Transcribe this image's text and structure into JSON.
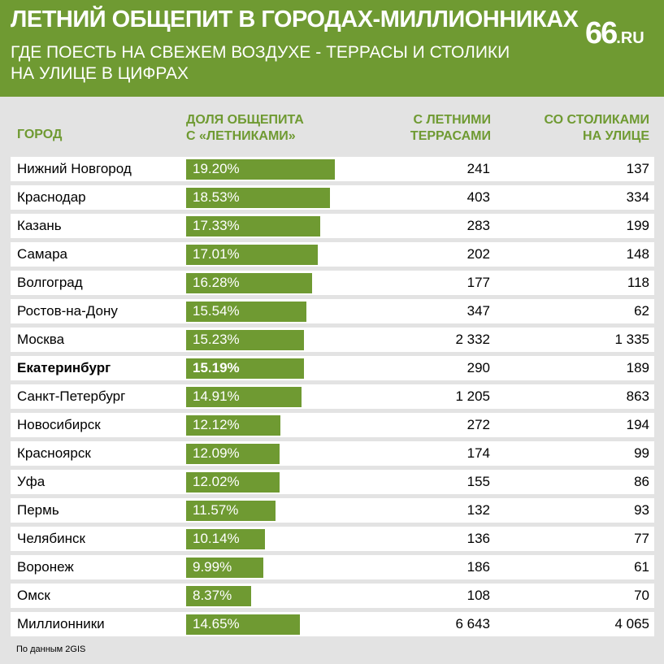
{
  "header": {
    "title": "ЛЕТНИЙ ОБЩЕПИТ В ГОРОДАХ-МИЛЛИОННИКАХ",
    "subtitle": "ГДЕ ПОЕСТЬ НА СВЕЖЕМ ВОЗДУХЕ - ТЕРРАСЫ И СТОЛИКИ НА УЛИЦЕ В ЦИФРАХ",
    "logo_big": "66",
    "logo_small": ".RU"
  },
  "columns": {
    "city": "ГОРОД",
    "share_1": "ДОЛЯ ОБЩЕПИТА",
    "share_2": "С «ЛЕТНИКАМИ»",
    "terraces_1": "С ЛЕТНИМИ",
    "terraces_2": "ТЕРРАСАМИ",
    "tables_1": "СО СТОЛИКАМИ",
    "tables_2": "НА УЛИЦЕ"
  },
  "source": "По данным 2GIS",
  "colors": {
    "accent": "#6f9a32",
    "background": "#e3e3e3",
    "row": "#ffffff"
  },
  "chart_data": {
    "type": "table",
    "title": "ЛЕТНИЙ ОБЩЕПИТ В ГОРОДАХ-МИЛЛИОННИКАХ",
    "max_share": 19.2,
    "rows": [
      {
        "city": "Нижний Новгород",
        "share": 19.2,
        "share_label": "19.20%",
        "terraces": "241",
        "tables": "137",
        "bold": false
      },
      {
        "city": "Краснодар",
        "share": 18.53,
        "share_label": "18.53%",
        "terraces": "403",
        "tables": "334",
        "bold": false
      },
      {
        "city": "Казань",
        "share": 17.33,
        "share_label": "17.33%",
        "terraces": "283",
        "tables": "199",
        "bold": false
      },
      {
        "city": "Самара",
        "share": 17.01,
        "share_label": "17.01%",
        "terraces": "202",
        "tables": "148",
        "bold": false
      },
      {
        "city": "Волгоград",
        "share": 16.28,
        "share_label": "16.28%",
        "terraces": "177",
        "tables": "118",
        "bold": false
      },
      {
        "city": "Ростов-на-Дону",
        "share": 15.54,
        "share_label": "15.54%",
        "terraces": "347",
        "tables": "62",
        "bold": false
      },
      {
        "city": "Москва",
        "share": 15.23,
        "share_label": "15.23%",
        "terraces": "2 332",
        "tables": "1 335",
        "bold": false
      },
      {
        "city": "Екатеринбург",
        "share": 15.19,
        "share_label": "15.19%",
        "terraces": "290",
        "tables": "189",
        "bold": true
      },
      {
        "city": "Санкт-Петербург",
        "share": 14.91,
        "share_label": "14.91%",
        "terraces": "1 205",
        "tables": "863",
        "bold": false
      },
      {
        "city": "Новосибирск",
        "share": 12.12,
        "share_label": "12.12%",
        "terraces": "272",
        "tables": "194",
        "bold": false
      },
      {
        "city": "Красноярск",
        "share": 12.09,
        "share_label": "12.09%",
        "terraces": "174",
        "tables": "99",
        "bold": false
      },
      {
        "city": "Уфа",
        "share": 12.02,
        "share_label": "12.02%",
        "terraces": "155",
        "tables": "86",
        "bold": false
      },
      {
        "city": "Пермь",
        "share": 11.57,
        "share_label": "11.57%",
        "terraces": "132",
        "tables": "93",
        "bold": false
      },
      {
        "city": "Челябинск",
        "share": 10.14,
        "share_label": "10.14%",
        "terraces": "136",
        "tables": "77",
        "bold": false
      },
      {
        "city": "Воронеж",
        "share": 9.99,
        "share_label": "9.99%",
        "terraces": "186",
        "tables": "61",
        "bold": false
      },
      {
        "city": "Омск",
        "share": 8.37,
        "share_label": "8.37%",
        "terraces": "108",
        "tables": "70",
        "bold": false
      },
      {
        "city": "Миллионники",
        "share": 14.65,
        "share_label": "14.65%",
        "terraces": "6 643",
        "tables": "4 065",
        "bold": false
      }
    ]
  }
}
